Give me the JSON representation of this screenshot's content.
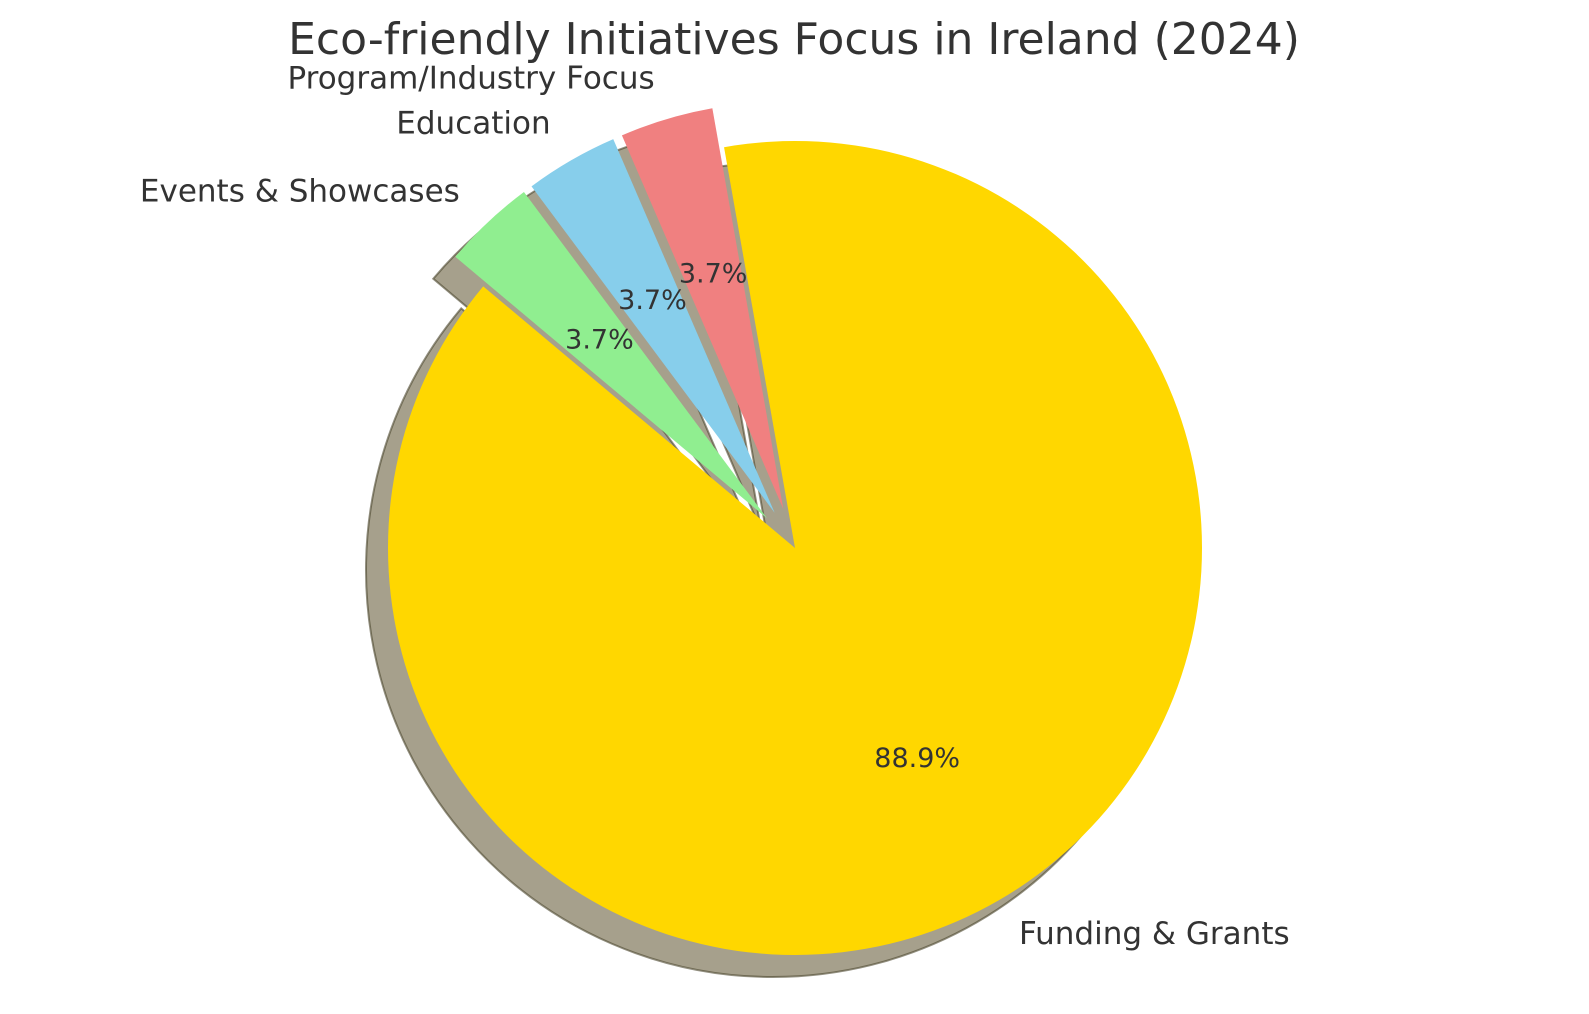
{
  "chart_data": {
    "type": "pie",
    "title": "Eco-friendly Initiatives Focus in Ireland (2024)",
    "slices": [
      {
        "label": "Funding & Grants",
        "value": 88.9,
        "pct_label": "88.9%",
        "color": "#FFD700",
        "exploded": false
      },
      {
        "label": "Program/Industry Focus",
        "value": 3.7,
        "pct_label": "3.7%",
        "color": "#F08080",
        "exploded": true
      },
      {
        "label": "Education",
        "value": 3.7,
        "pct_label": "3.7%",
        "color": "#87CEEB",
        "exploded": true
      },
      {
        "label": "Events & Showcases",
        "value": 3.7,
        "pct_label": "3.7%",
        "color": "#90EE90",
        "exploded": true
      }
    ],
    "shadow": true,
    "legend": "none"
  }
}
